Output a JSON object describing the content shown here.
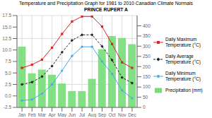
{
  "chart_data": {
    "type": "line",
    "title": "Temperature and Precipitation Graph for 1981 to 2010 Canadian Climate Normals",
    "subtitle": "PRINCE RUPERT A",
    "categories": [
      "Jan",
      "Feb",
      "Mar",
      "Apr",
      "May",
      "Jun",
      "Jul",
      "Aug",
      "Sep",
      "Oct",
      "Nov",
      "Dec"
    ],
    "series": [
      {
        "name": "Daily Maximum\nTemperature (°C)",
        "type": "line",
        "color": "#dd2222",
        "marker": "square",
        "line_style": "solid",
        "values": [
          6.1,
          6.8,
          7.9,
          10.5,
          13.5,
          16.2,
          17.3,
          17.3,
          15.1,
          11.3,
          7.3,
          6.1
        ]
      },
      {
        "name": "Daily Average\nTemperature (°C)",
        "type": "line",
        "color": "#222222",
        "marker": "diamond",
        "line_style": "dashed",
        "values": [
          2.5,
          3.0,
          4.2,
          6.5,
          9.5,
          12.1,
          13.3,
          13.3,
          10.8,
          7.8,
          4.0,
          2.8
        ]
      },
      {
        "name": "Daily Minimum\nTemperature (°C)",
        "type": "line",
        "color": "#44aaee",
        "marker": "circle",
        "line_style": "solid",
        "values": [
          -1.0,
          -0.8,
          0.5,
          2.5,
          5.5,
          8.7,
          10.7,
          10.7,
          7.5,
          4.8,
          1.2,
          -0.5
        ]
      },
      {
        "name": "Precipitation (mm)",
        "type": "bar",
        "axis": "y2",
        "color": "#77dd77",
        "values": [
          298,
          167,
          185,
          160,
          117,
          80,
          80,
          140,
          285,
          350,
          340,
          310
        ]
      }
    ],
    "ylim": [
      -2.5,
      17.5
    ],
    "yticks": [
      -2.5,
      {
        "value": 0,
        "label": "0.0"
      },
      2.5,
      {
        "value": 5,
        "label": "5.0"
      },
      7.5,
      {
        "value": 10,
        "label": "10.0"
      },
      12.5,
      {
        "value": 15,
        "label": "15.0"
      },
      17.5
    ],
    "y2lim": [
      0,
      450
    ],
    "y2ticks": [
      0,
      50,
      100,
      150,
      200,
      250,
      300,
      350,
      400
    ],
    "grid": true,
    "legend": "right"
  }
}
